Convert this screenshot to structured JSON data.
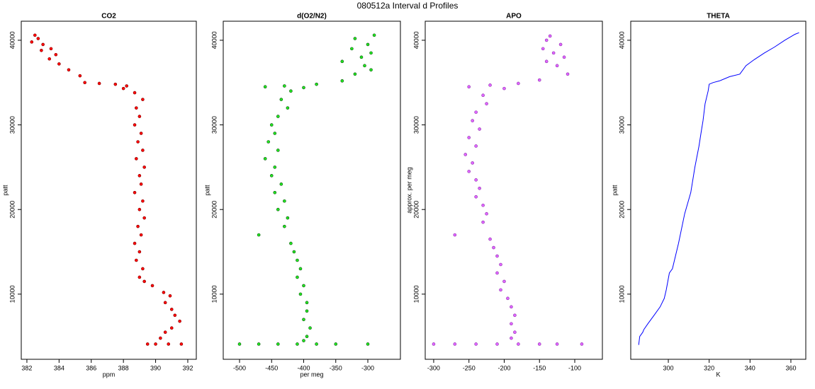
{
  "title": "080512a   Interval d Profiles",
  "chart_data": [
    {
      "type": "scatter",
      "title": "CO2",
      "xlabel": "ppm",
      "ylabel": "patt",
      "color": "#ff0000",
      "edgecolor": "#7a0000",
      "xlim": [
        381.65,
        392.53
      ],
      "ylim": [
        2300,
        42250
      ],
      "xticks": [
        382,
        384,
        386,
        388,
        390,
        392
      ],
      "yticks": [
        10000,
        20000,
        30000,
        40000
      ],
      "x": [
        382.5,
        382.7,
        382.3,
        383.0,
        383.5,
        382.9,
        383.8,
        383.4,
        384.0,
        384.6,
        385.3,
        385.6,
        386.5,
        387.5,
        388.2,
        388.0,
        388.7,
        389.2,
        388.8,
        389.0,
        388.7,
        389.1,
        388.9,
        389.2,
        388.8,
        389.3,
        389.0,
        389.1,
        388.7,
        389.2,
        389.0,
        389.3,
        388.9,
        389.1,
        388.7,
        389.0,
        388.8,
        389.2,
        389.0,
        389.3,
        389.8,
        390.5,
        390.9,
        390.6,
        391.0,
        391.2,
        391.5,
        391.0,
        390.6,
        390.3,
        390.0,
        390.8,
        391.6,
        389.5
      ],
      "values": [
        40600,
        40200,
        39800,
        39500,
        39000,
        38800,
        38300,
        37800,
        37200,
        36500,
        35800,
        35000,
        34900,
        34800,
        34600,
        34300,
        33800,
        33000,
        32000,
        31000,
        30000,
        29000,
        28000,
        27000,
        26000,
        25000,
        24000,
        23000,
        22000,
        21000,
        20000,
        19000,
        18000,
        17000,
        16000,
        15000,
        14000,
        13000,
        12000,
        11500,
        11000,
        10200,
        9800,
        9000,
        8200,
        7500,
        6800,
        6000,
        5500,
        4800,
        4100,
        4100,
        4100,
        4100
      ]
    },
    {
      "type": "scatter",
      "title": "d(O2/N2)",
      "xlabel": "per meg",
      "ylabel": "patt",
      "color": "#22e622",
      "edgecolor": "#0b4d0b",
      "xlim": [
        -525.4,
        -249.2
      ],
      "ylim": [
        2300,
        42250
      ],
      "xticks": [
        -500,
        -450,
        -400,
        -350,
        -300
      ],
      "yticks": [
        10000,
        20000,
        30000,
        40000
      ],
      "x": [
        -290,
        -320,
        -300,
        -325,
        -295,
        -310,
        -340,
        -305,
        -295,
        -320,
        -340,
        -380,
        -430,
        -400,
        -460,
        -420,
        -435,
        -425,
        -440,
        -450,
        -445,
        -455,
        -440,
        -460,
        -445,
        -450,
        -435,
        -445,
        -430,
        -440,
        -425,
        -430,
        -470,
        -420,
        -415,
        -410,
        -405,
        -410,
        -400,
        -405,
        -395,
        -395,
        -400,
        -390,
        -395,
        -400,
        -500,
        -470,
        -440,
        -410,
        -380,
        -350,
        -300
      ],
      "values": [
        40600,
        40200,
        39500,
        39000,
        38500,
        38000,
        37500,
        37000,
        36500,
        36000,
        35200,
        34800,
        34600,
        34400,
        34500,
        34000,
        33000,
        32000,
        31000,
        30000,
        29000,
        28000,
        27000,
        26000,
        25000,
        24000,
        23000,
        22000,
        21000,
        20000,
        19000,
        18000,
        17000,
        16000,
        15000,
        14000,
        13000,
        12000,
        11000,
        10000,
        9000,
        8000,
        7000,
        6000,
        5000,
        4500,
        4100,
        4100,
        4100,
        4100,
        4100,
        4100,
        4100
      ]
    },
    {
      "type": "scatter",
      "title": "APO",
      "ylabel": "approx. per meg",
      "color": "#e066ff",
      "edgecolor": "#8a2da8",
      "xlim": [
        -312,
        -60.8
      ],
      "ylim": [
        2300,
        42250
      ],
      "xticks": [
        -300,
        -250,
        -200,
        -150,
        -100
      ],
      "yticks": [
        10000,
        20000,
        30000,
        40000
      ],
      "x": [
        -135,
        -140,
        -120,
        -145,
        -130,
        -115,
        -140,
        -125,
        -110,
        -150,
        -180,
        -220,
        -250,
        -200,
        -230,
        -225,
        -240,
        -245,
        -235,
        -250,
        -240,
        -255,
        -245,
        -250,
        -240,
        -235,
        -240,
        -230,
        -225,
        -230,
        -270,
        -220,
        -215,
        -210,
        -205,
        -210,
        -200,
        -205,
        -195,
        -190,
        -185,
        -190,
        -185,
        -190,
        -300,
        -270,
        -240,
        -210,
        -180,
        -150,
        -125,
        -90
      ],
      "values": [
        40500,
        40000,
        39500,
        39000,
        38500,
        38000,
        37500,
        37000,
        36000,
        35300,
        34900,
        34700,
        34500,
        34300,
        33500,
        32500,
        31500,
        30500,
        29500,
        28500,
        27500,
        26500,
        25500,
        24500,
        23500,
        22500,
        21500,
        20500,
        19500,
        18500,
        17000,
        16500,
        15500,
        14500,
        13500,
        12500,
        11500,
        10500,
        9500,
        8500,
        7500,
        6500,
        5500,
        4800,
        4100,
        4100,
        4100,
        4100,
        4100,
        4100,
        4100,
        4100
      ]
    },
    {
      "type": "line",
      "title": "THETA",
      "xlabel": "K",
      "ylabel": "patt",
      "color": "#0000ff",
      "xlim": [
        281.6,
        367.3
      ],
      "ylim": [
        2300,
        42250
      ],
      "xticks": [
        300,
        320,
        340,
        360
      ],
      "yticks": [
        10000,
        20000,
        30000,
        40000
      ],
      "x": [
        285.5,
        286,
        287.5,
        288,
        290,
        293,
        296,
        298,
        299,
        300.5,
        302,
        305,
        308,
        311,
        313,
        315,
        316,
        317,
        318,
        319.5,
        320,
        322,
        325,
        330,
        335,
        338,
        342,
        347,
        352,
        357,
        362,
        364
      ],
      "values": [
        4000,
        5000,
        5500,
        5800,
        6500,
        7500,
        8500,
        9500,
        10500,
        12500,
        13000,
        16000,
        19500,
        22000,
        25000,
        27500,
        29000,
        30500,
        32500,
        34000,
        34800,
        35000,
        35200,
        35700,
        36000,
        37000,
        37700,
        38500,
        39200,
        40000,
        40700,
        40900
      ]
    }
  ]
}
